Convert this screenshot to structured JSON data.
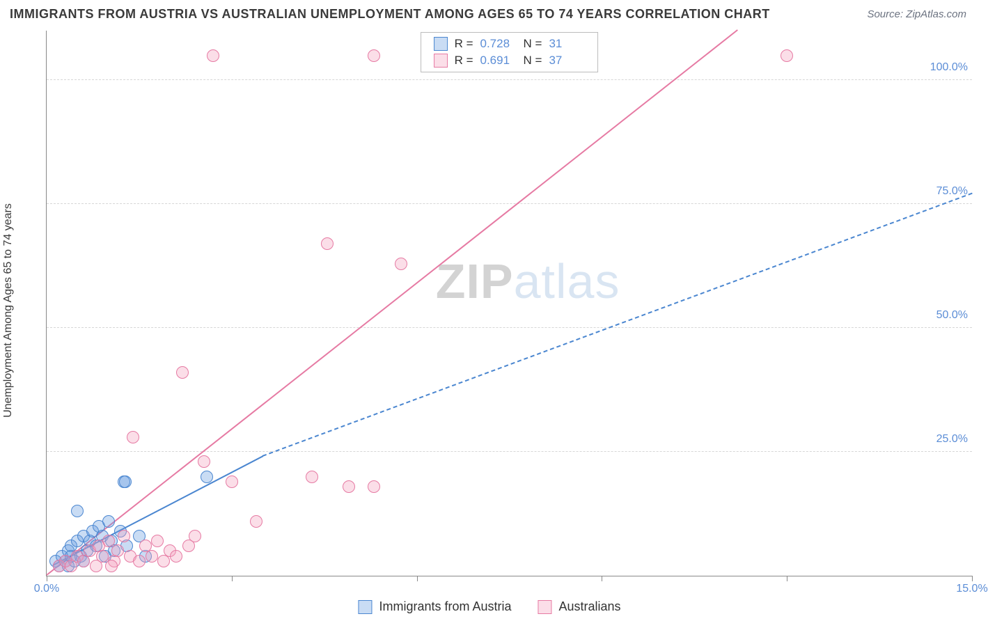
{
  "title": "IMMIGRANTS FROM AUSTRIA VS AUSTRALIAN UNEMPLOYMENT AMONG AGES 65 TO 74 YEARS CORRELATION CHART",
  "source": "Source: ZipAtlas.com",
  "yaxis_title": "Unemployment Among Ages 65 to 74 years",
  "watermark_a": "ZIP",
  "watermark_b": "atlas",
  "chart": {
    "type": "scatter",
    "xlim": [
      0,
      15
    ],
    "ylim": [
      0,
      110
    ],
    "x_ticks": [
      0,
      3,
      6,
      9,
      12,
      15
    ],
    "x_tick_labels": [
      "0.0%",
      "",
      "",
      "",
      "",
      "15.0%"
    ],
    "y_gridlines": [
      25,
      50,
      75,
      100
    ],
    "y_tick_labels": [
      "25.0%",
      "50.0%",
      "75.0%",
      "100.0%"
    ],
    "background_color": "#ffffff",
    "grid_color": "#d6d6d6",
    "axis_color": "#888888",
    "label_color": "#5b8dd6",
    "marker_radius": 9,
    "series": [
      {
        "name": "Immigrants from Austria",
        "color_fill": "rgba(99,155,224,0.35)",
        "color_stroke": "#4a86d0",
        "R": "0.728",
        "N": "31",
        "trend": {
          "x0": 0.1,
          "y0": 2,
          "x1": 3.5,
          "y1": 24,
          "solid": true
        },
        "trend_ext": {
          "x0": 3.5,
          "y0": 24,
          "x1": 15,
          "y1": 77,
          "solid": false
        },
        "points": [
          [
            0.15,
            3
          ],
          [
            0.2,
            2
          ],
          [
            0.25,
            4
          ],
          [
            0.3,
            3
          ],
          [
            0.35,
            5
          ],
          [
            0.35,
            2
          ],
          [
            0.4,
            6
          ],
          [
            0.45,
            3
          ],
          [
            0.5,
            7
          ],
          [
            0.5,
            13
          ],
          [
            0.55,
            4
          ],
          [
            0.6,
            8
          ],
          [
            0.6,
            3
          ],
          [
            0.65,
            5
          ],
          [
            0.7,
            7
          ],
          [
            0.75,
            9
          ],
          [
            0.8,
            6
          ],
          [
            0.85,
            10
          ],
          [
            0.9,
            8
          ],
          [
            0.95,
            4
          ],
          [
            1.0,
            11
          ],
          [
            1.05,
            7
          ],
          [
            1.1,
            5
          ],
          [
            1.2,
            9
          ],
          [
            1.25,
            19
          ],
          [
            1.28,
            19
          ],
          [
            1.3,
            6
          ],
          [
            1.5,
            8
          ],
          [
            1.6,
            4
          ],
          [
            2.6,
            20
          ],
          [
            0.4,
            4
          ]
        ]
      },
      {
        "name": "Australians",
        "color_fill": "rgba(244,160,188,0.35)",
        "color_stroke": "#e67aa3",
        "R": "0.691",
        "N": "37",
        "trend": {
          "x0": 0.0,
          "y0": 0,
          "x1": 11.2,
          "y1": 110,
          "solid": true
        },
        "points": [
          [
            0.2,
            2
          ],
          [
            0.3,
            3
          ],
          [
            0.4,
            2
          ],
          [
            0.5,
            4
          ],
          [
            0.6,
            3
          ],
          [
            0.7,
            5
          ],
          [
            0.8,
            2
          ],
          [
            0.85,
            6
          ],
          [
            0.9,
            4
          ],
          [
            1.0,
            7
          ],
          [
            1.1,
            3
          ],
          [
            1.15,
            5
          ],
          [
            1.25,
            8
          ],
          [
            1.35,
            4
          ],
          [
            1.4,
            28
          ],
          [
            1.5,
            3
          ],
          [
            1.6,
            6
          ],
          [
            1.7,
            4
          ],
          [
            1.8,
            7
          ],
          [
            1.9,
            3
          ],
          [
            2.0,
            5
          ],
          [
            2.1,
            4
          ],
          [
            2.2,
            41
          ],
          [
            2.3,
            6
          ],
          [
            2.4,
            8
          ],
          [
            2.55,
            23
          ],
          [
            2.7,
            105
          ],
          [
            3.0,
            19
          ],
          [
            3.4,
            11
          ],
          [
            4.3,
            20
          ],
          [
            4.55,
            67
          ],
          [
            4.9,
            18
          ],
          [
            5.3,
            18
          ],
          [
            5.3,
            105
          ],
          [
            5.75,
            63
          ],
          [
            12.0,
            105
          ],
          [
            1.05,
            2
          ]
        ]
      }
    ]
  },
  "r_legend_label_R": "R =",
  "r_legend_label_N": "N ="
}
